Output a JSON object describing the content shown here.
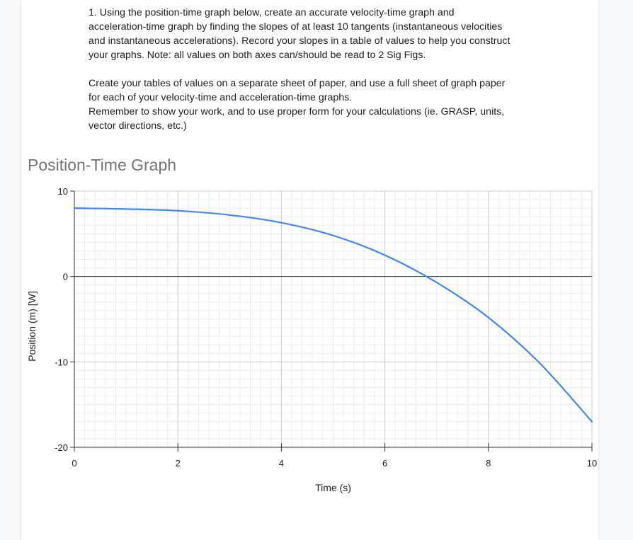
{
  "instructions": {
    "line1": "1.  Using the position-time graph below, create an accurate velocity-time graph and",
    "line2": "acceleration-time graph by finding the slopes of at least 10 tangents (instantaneous velocities",
    "line3": "and instantaneous accelerations).  Record your slopes in a table of values to help you construct",
    "line4": "your graphs.  Note: all values on both axes can/should be read to 2 Sig Figs.",
    "line5": "Create your tables of values on a separate sheet of paper, and use a full sheet of graph paper",
    "line6": "for each of your velocity-time and acceleration-time graphs.",
    "line7": "Remember to show your work, and to use proper form for your calculations (ie. GRASP, units,",
    "line8": "vector directions, etc.)"
  },
  "chart_data": {
    "type": "line",
    "title": "Position-Time Graph",
    "xlabel": "Time (s)",
    "ylabel": "Position (m) [W]",
    "xlim": [
      0,
      10
    ],
    "ylim": [
      -20,
      10
    ],
    "x_ticks": [
      0,
      2,
      4,
      6,
      8,
      10
    ],
    "y_ticks": [
      10,
      0,
      -10,
      -20
    ],
    "grid": true,
    "legend": "none",
    "series": [
      {
        "color": "#4285f4",
        "x": [
          0,
          1,
          2,
          3,
          4,
          5,
          6,
          7,
          8,
          9,
          10
        ],
        "y": [
          8.0,
          7.9,
          7.7,
          7.2,
          6.3,
          4.8,
          2.5,
          -0.7,
          -4.8,
          -10.2,
          -17.0
        ]
      }
    ]
  }
}
